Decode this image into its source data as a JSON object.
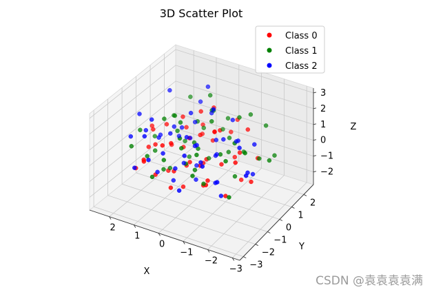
{
  "chart_data": {
    "type": "scatter",
    "title": "3D Scatter Plot",
    "xlabel": "X",
    "ylabel": "Y",
    "zlabel": "Z",
    "xlim": [
      -3.3,
      2.8
    ],
    "ylim": [
      -3.3,
      2.8
    ],
    "zlim": [
      -2.8,
      3.3
    ],
    "xticks": [
      "−3",
      "−2",
      "−1",
      "0",
      "1",
      "2"
    ],
    "yticks": [
      "−3",
      "−2",
      "−1",
      "0",
      "1",
      "2"
    ],
    "zticks": [
      "−2",
      "−1",
      "0",
      "1",
      "2",
      "3"
    ],
    "xtick_values": [
      -3,
      -2,
      -1,
      0,
      1,
      2
    ],
    "ytick_values": [
      -3,
      -2,
      -1,
      0,
      1,
      2
    ],
    "ztick_values": [
      -2,
      -1,
      0,
      1,
      2,
      3
    ],
    "grid": true,
    "legend_position": "top-right",
    "series": [
      {
        "name": "Class 0",
        "color": "#ff0000",
        "points": [
          [
            -2.3,
            -0.4,
            -0.6
          ],
          [
            -2.0,
            0.7,
            -0.1
          ],
          [
            -1.7,
            -1.3,
            -1.1
          ],
          [
            -1.5,
            0.2,
            0.4
          ],
          [
            -1.3,
            1.2,
            1.0
          ],
          [
            -1.1,
            -0.5,
            0.0
          ],
          [
            -0.9,
            0.9,
            -0.7
          ],
          [
            -0.8,
            -1.6,
            0.6
          ],
          [
            -0.6,
            0.3,
            1.3
          ],
          [
            -0.5,
            -0.8,
            -1.4
          ],
          [
            -0.4,
            1.5,
            0.2
          ],
          [
            -0.3,
            -0.2,
            -0.3
          ],
          [
            -0.2,
            0.6,
            0.8
          ],
          [
            -0.1,
            -1.1,
            0.1
          ],
          [
            0.0,
            0.1,
            -0.9
          ],
          [
            0.1,
            1.0,
            -0.2
          ],
          [
            0.2,
            -0.6,
            1.1
          ],
          [
            0.3,
            0.4,
            0.5
          ],
          [
            0.4,
            -1.4,
            -0.5
          ],
          [
            0.5,
            0.8,
            1.6
          ],
          [
            0.6,
            -0.1,
            -1.2
          ],
          [
            0.7,
            1.3,
            0.3
          ],
          [
            0.8,
            -0.9,
            0.7
          ],
          [
            0.9,
            0.2,
            -0.4
          ],
          [
            1.0,
            -1.7,
            -0.8
          ],
          [
            1.1,
            0.5,
            1.2
          ],
          [
            1.2,
            -0.4,
            -1.6
          ],
          [
            1.3,
            1.1,
            0.0
          ],
          [
            1.4,
            -1.0,
            0.4
          ],
          [
            1.5,
            0.0,
            0.9
          ],
          [
            1.6,
            -1.5,
            -0.3
          ],
          [
            1.7,
            0.7,
            -1.0
          ],
          [
            1.9,
            -0.3,
            0.6
          ],
          [
            2.1,
            -1.2,
            -1.3
          ],
          [
            2.3,
            0.3,
            0.2
          ],
          [
            -1.9,
            -0.9,
            0.8
          ],
          [
            -1.2,
            -1.9,
            -0.2
          ],
          [
            -0.7,
            -0.3,
            1.7
          ],
          [
            0.2,
            -2.0,
            -1.0
          ],
          [
            0.9,
            1.6,
            -0.6
          ],
          [
            1.2,
            -2.2,
            0.3
          ],
          [
            -0.4,
            2.0,
            0.6
          ],
          [
            0.6,
            -1.9,
            1.4
          ],
          [
            1.8,
            -0.8,
            -0.1
          ],
          [
            -1.4,
            0.5,
            -1.6
          ],
          [
            0.0,
            0.9,
            2.0
          ],
          [
            -0.9,
            -1.2,
            -0.6
          ],
          [
            0.4,
            -0.7,
            -2.0
          ]
        ]
      },
      {
        "name": "Class 1",
        "color": "#008000",
        "points": [
          [
            -2.6,
            0.5,
            0.2
          ],
          [
            -2.2,
            -0.7,
            1.4
          ],
          [
            -1.9,
            1.0,
            -0.4
          ],
          [
            -1.6,
            -1.1,
            0.9
          ],
          [
            -1.4,
            0.0,
            -1.0
          ],
          [
            -1.2,
            1.6,
            1.6
          ],
          [
            -1.0,
            -0.4,
            0.5
          ],
          [
            -0.8,
            0.6,
            -0.2
          ],
          [
            -0.6,
            -1.5,
            1.1
          ],
          [
            -0.5,
            1.2,
            0.1
          ],
          [
            -0.3,
            0.2,
            1.8
          ],
          [
            -0.2,
            -0.9,
            -0.5
          ],
          [
            -0.1,
            1.8,
            0.7
          ],
          [
            0.0,
            -0.3,
            0.3
          ],
          [
            0.1,
            0.7,
            -1.1
          ],
          [
            0.2,
            -1.2,
            0.9
          ],
          [
            0.3,
            1.4,
            1.3
          ],
          [
            0.4,
            -0.5,
            -0.7
          ],
          [
            0.5,
            0.3,
            0.0
          ],
          [
            0.6,
            -1.8,
            0.4
          ],
          [
            0.7,
            0.9,
            0.8
          ],
          [
            0.8,
            -0.2,
            1.5
          ],
          [
            0.9,
            1.7,
            -0.3
          ],
          [
            1.0,
            -1.1,
            -0.9
          ],
          [
            1.1,
            0.1,
            0.6
          ],
          [
            1.2,
            -0.7,
            1.9
          ],
          [
            1.3,
            1.0,
            -0.8
          ],
          [
            1.4,
            -1.6,
            0.1
          ],
          [
            1.5,
            0.6,
            1.0
          ],
          [
            1.7,
            -0.5,
            -0.5
          ],
          [
            1.9,
            1.2,
            0.4
          ],
          [
            2.1,
            -0.9,
            0.9
          ],
          [
            2.3,
            0.5,
            -0.6
          ],
          [
            -1.7,
            1.9,
            0.9
          ],
          [
            -0.7,
            -2.0,
            0.2
          ],
          [
            0.3,
            2.1,
            -0.4
          ],
          [
            1.6,
            1.9,
            1.2
          ],
          [
            -2.0,
            -1.6,
            -0.8
          ],
          [
            0.8,
            -2.3,
            -0.4
          ],
          [
            -0.2,
            0.4,
            2.3
          ],
          [
            1.0,
            0.8,
            -1.5
          ],
          [
            -1.1,
            0.9,
            1.9
          ],
          [
            2.0,
            -1.7,
            0.5
          ],
          [
            -0.4,
            -0.6,
            -1.5
          ],
          [
            0.5,
            1.5,
            2.1
          ],
          [
            -2.4,
            1.3,
            -0.2
          ],
          [
            1.3,
            -0.1,
            -1.7
          ],
          [
            -0.9,
            1.6,
            -0.9
          ],
          [
            0.1,
            -1.5,
            1.8
          ],
          [
            -1.5,
            -0.2,
            1.3
          ]
        ]
      },
      {
        "name": "Class 2",
        "color": "#0000ff",
        "points": [
          [
            -2.4,
            -1.0,
            0.3
          ],
          [
            -2.0,
            0.3,
            -0.8
          ],
          [
            -1.7,
            -0.2,
            1.1
          ],
          [
            -1.4,
            -1.4,
            -0.3
          ],
          [
            -1.1,
            0.8,
            0.5
          ],
          [
            -0.9,
            -0.6,
            -1.2
          ],
          [
            -0.7,
            1.1,
            1.4
          ],
          [
            -0.5,
            -1.0,
            0.2
          ],
          [
            -0.3,
            0.5,
            -0.6
          ],
          [
            -0.2,
            -1.7,
            1.0
          ],
          [
            -0.1,
            0.9,
            0.0
          ],
          [
            0.0,
            -0.4,
            0.6
          ],
          [
            0.1,
            1.3,
            -1.3
          ],
          [
            0.2,
            -0.8,
            1.3
          ],
          [
            0.3,
            0.0,
            0.1
          ],
          [
            0.4,
            -1.3,
            -0.4
          ],
          [
            0.5,
            1.6,
            0.9
          ],
          [
            0.6,
            -0.3,
            -0.9
          ],
          [
            0.7,
            0.4,
            1.7
          ],
          [
            0.8,
            -1.5,
            0.5
          ],
          [
            0.9,
            0.7,
            -0.2
          ],
          [
            1.0,
            -0.6,
            1.0
          ],
          [
            1.1,
            1.4,
            0.2
          ],
          [
            1.2,
            -1.2,
            -1.1
          ],
          [
            1.3,
            0.2,
            0.7
          ],
          [
            1.4,
            -1.8,
            1.5
          ],
          [
            1.5,
            0.9,
            -0.5
          ],
          [
            1.6,
            -0.4,
            0.3
          ],
          [
            1.8,
            -1.0,
            1.1
          ],
          [
            2.0,
            0.4,
            -0.3
          ],
          [
            2.2,
            -1.4,
            0.8
          ],
          [
            -0.6,
            -0.2,
            3.0
          ],
          [
            0.6,
            1.5,
            2.6
          ],
          [
            -1.3,
            -0.9,
            -1.6
          ],
          [
            1.7,
            -2.0,
            -0.5
          ],
          [
            -0.4,
            1.9,
            -0.7
          ],
          [
            0.9,
            -2.4,
            0.7
          ],
          [
            2.3,
            -0.6,
            1.6
          ],
          [
            -1.8,
            0.8,
            0.6
          ],
          [
            0.2,
            -0.1,
            -1.9
          ],
          [
            1.1,
            1.8,
            1.2
          ],
          [
            -0.2,
            -2.1,
            -0.9
          ],
          [
            1.9,
            0.9,
            2.2
          ],
          [
            -1.0,
            -1.8,
            0.8
          ],
          [
            0.4,
            0.3,
            -1.4
          ],
          [
            1.5,
            -1.1,
            2.0
          ],
          [
            -2.1,
            -0.3,
            -0.2
          ],
          [
            0.7,
            -0.9,
            -1.6
          ],
          [
            -0.8,
            0.2,
            0.9
          ],
          [
            1.2,
            0.6,
            0.4
          ]
        ]
      }
    ]
  },
  "watermark": "CSDN @袁袁袁袁满"
}
